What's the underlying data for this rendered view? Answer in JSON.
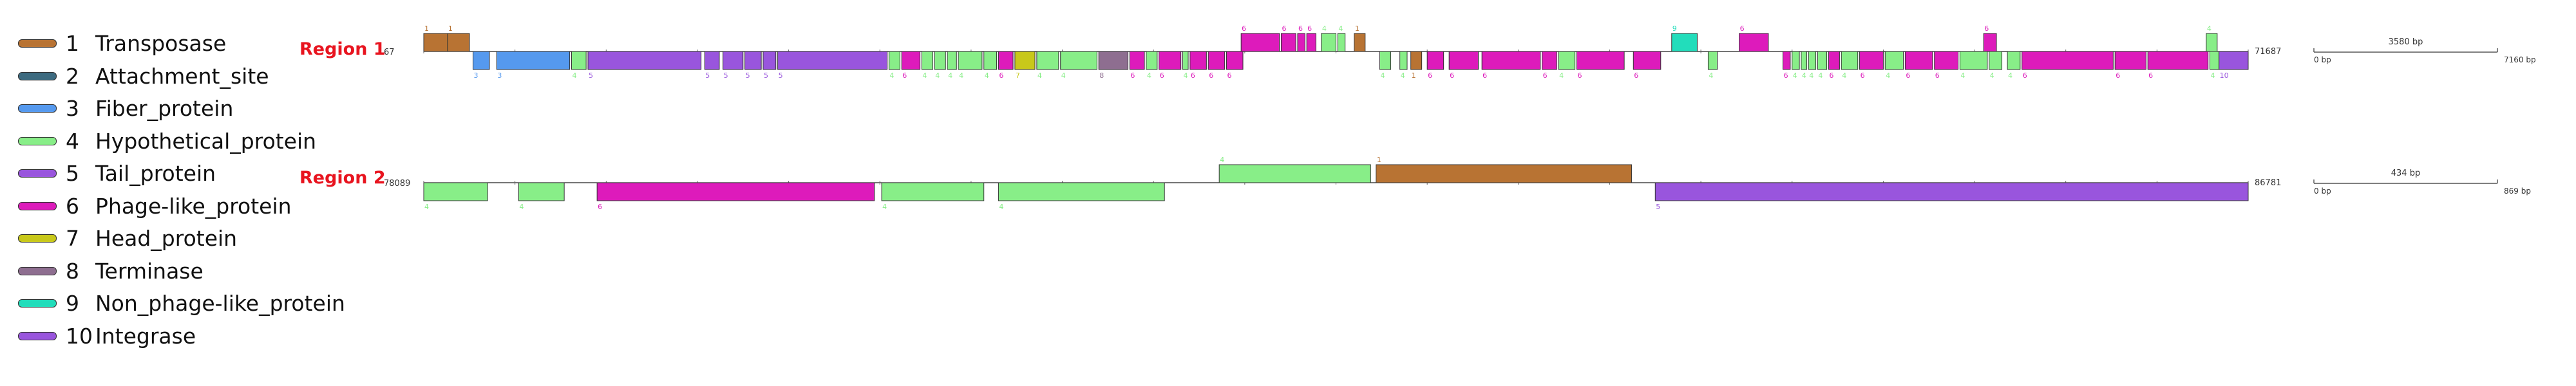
{
  "legend": [
    {
      "num": "1",
      "label": "Transposase",
      "color": "#b87333"
    },
    {
      "num": "2",
      "label": "Attachment_site",
      "color": "#3d6b80"
    },
    {
      "num": "3",
      "label": "Fiber_protein",
      "color": "#5599ee"
    },
    {
      "num": "4",
      "label": "Hypothetical_protein",
      "color": "#88ee88"
    },
    {
      "num": "5",
      "label": "Tail_protein",
      "color": "#9955dd"
    },
    {
      "num": "6",
      "label": "Phage-like_protein",
      "color": "#dd1bbb"
    },
    {
      "num": "7",
      "label": "Head_protein",
      "color": "#c8c81a"
    },
    {
      "num": "8",
      "label": "Terminase",
      "color": "#8e6e90"
    },
    {
      "num": "9",
      "label": "Non_phage-like_protein",
      "color": "#22ddbb"
    },
    {
      "num": "10",
      "label": "Integrase",
      "color": "#9955dd"
    }
  ],
  "regions": [
    {
      "title": "Region 1",
      "start": "67",
      "end": "71687",
      "scale": {
        "label": "3580 bp",
        "left": "0 bp",
        "right": "7160 bp"
      },
      "genes": [
        {
          "s": 0.0,
          "e": 0.025,
          "strand": 1,
          "type": 1,
          "label": "1"
        },
        {
          "s": 0.013,
          "e": 0.025,
          "strand": 1,
          "type": 1,
          "label": "1"
        },
        {
          "s": 0.027,
          "e": 0.036,
          "strand": -1,
          "type": 3,
          "label": "3"
        },
        {
          "s": 0.04,
          "e": 0.08,
          "strand": -1,
          "type": 3,
          "label": "3"
        },
        {
          "s": 0.081,
          "e": 0.089,
          "strand": -1,
          "type": 4,
          "label": "4"
        },
        {
          "s": 0.09,
          "e": 0.152,
          "strand": -1,
          "type": 5,
          "label": "5"
        },
        {
          "s": 0.154,
          "e": 0.162,
          "strand": -1,
          "type": 5,
          "label": "5"
        },
        {
          "s": 0.164,
          "e": 0.175,
          "strand": -1,
          "type": 5,
          "label": "5"
        },
        {
          "s": 0.176,
          "e": 0.185,
          "strand": -1,
          "type": 5,
          "label": "5"
        },
        {
          "s": 0.186,
          "e": 0.193,
          "strand": -1,
          "type": 5,
          "label": "5"
        },
        {
          "s": 0.194,
          "e": 0.254,
          "strand": -1,
          "type": 5,
          "label": "5"
        },
        {
          "s": 0.255,
          "e": 0.261,
          "strand": -1,
          "type": 4,
          "label": "4"
        },
        {
          "s": 0.262,
          "e": 0.272,
          "strand": -1,
          "type": 6,
          "label": "6"
        },
        {
          "s": 0.273,
          "e": 0.279,
          "strand": -1,
          "type": 4,
          "label": "4"
        },
        {
          "s": 0.28,
          "e": 0.286,
          "strand": -1,
          "type": 4,
          "label": "4"
        },
        {
          "s": 0.287,
          "e": 0.292,
          "strand": -1,
          "type": 4,
          "label": "4"
        },
        {
          "s": 0.293,
          "e": 0.306,
          "strand": -1,
          "type": 4,
          "label": "4"
        },
        {
          "s": 0.307,
          "e": 0.314,
          "strand": -1,
          "type": 4,
          "label": "4"
        },
        {
          "s": 0.315,
          "e": 0.323,
          "strand": -1,
          "type": 6,
          "label": "6"
        },
        {
          "s": 0.324,
          "e": 0.335,
          "strand": -1,
          "type": 7,
          "label": "7"
        },
        {
          "s": 0.336,
          "e": 0.348,
          "strand": -1,
          "type": 4,
          "label": "4"
        },
        {
          "s": 0.349,
          "e": 0.369,
          "strand": -1,
          "type": 4,
          "label": "4"
        },
        {
          "s": 0.37,
          "e": 0.386,
          "strand": -1,
          "type": 8,
          "label": "8"
        },
        {
          "s": 0.387,
          "e": 0.395,
          "strand": -1,
          "type": 6,
          "label": "6"
        },
        {
          "s": 0.396,
          "e": 0.402,
          "strand": -1,
          "type": 4,
          "label": "4"
        },
        {
          "s": 0.403,
          "e": 0.415,
          "strand": -1,
          "type": 6,
          "label": "6"
        },
        {
          "s": 0.416,
          "e": 0.419,
          "strand": -1,
          "type": 4,
          "label": "4"
        },
        {
          "s": 0.42,
          "e": 0.429,
          "strand": -1,
          "type": 6,
          "label": "6"
        },
        {
          "s": 0.43,
          "e": 0.439,
          "strand": -1,
          "type": 6,
          "label": "6"
        },
        {
          "s": 0.44,
          "e": 0.449,
          "strand": -1,
          "type": 6,
          "label": "6"
        },
        {
          "s": 0.448,
          "e": 0.469,
          "strand": 1,
          "type": 6,
          "label": "6"
        },
        {
          "s": 0.47,
          "e": 0.478,
          "strand": 1,
          "type": 6,
          "label": "6"
        },
        {
          "s": 0.479,
          "e": 0.483,
          "strand": 1,
          "type": 6,
          "label": "6"
        },
        {
          "s": 0.484,
          "e": 0.489,
          "strand": 1,
          "type": 6,
          "label": "6"
        },
        {
          "s": 0.492,
          "e": 0.5,
          "strand": 1,
          "type": 4,
          "label": "4"
        },
        {
          "s": 0.501,
          "e": 0.505,
          "strand": 1,
          "type": 4,
          "label": "4"
        },
        {
          "s": 0.51,
          "e": 0.516,
          "strand": 1,
          "type": 1,
          "label": "1"
        },
        {
          "s": 0.524,
          "e": 0.53,
          "strand": -1,
          "type": 4,
          "label": "4"
        },
        {
          "s": 0.535,
          "e": 0.539,
          "strand": -1,
          "type": 4,
          "label": "4"
        },
        {
          "s": 0.541,
          "e": 0.547,
          "strand": -1,
          "type": 1,
          "label": "1"
        },
        {
          "s": 0.55,
          "e": 0.559,
          "strand": -1,
          "type": 6,
          "label": "6"
        },
        {
          "s": 0.562,
          "e": 0.578,
          "strand": -1,
          "type": 6,
          "label": "6"
        },
        {
          "s": 0.58,
          "e": 0.612,
          "strand": -1,
          "type": 6,
          "label": "6"
        },
        {
          "s": 0.613,
          "e": 0.621,
          "strand": -1,
          "type": 6,
          "label": "6"
        },
        {
          "s": 0.622,
          "e": 0.631,
          "strand": -1,
          "type": 4,
          "label": "4"
        },
        {
          "s": 0.632,
          "e": 0.658,
          "strand": -1,
          "type": 6,
          "label": "6"
        },
        {
          "s": 0.663,
          "e": 0.678,
          "strand": -1,
          "type": 6,
          "label": "6"
        },
        {
          "s": 0.684,
          "e": 0.698,
          "strand": 1,
          "type": 9,
          "label": "9"
        },
        {
          "s": 0.704,
          "e": 0.709,
          "strand": -1,
          "type": 4,
          "label": "4"
        },
        {
          "s": 0.721,
          "e": 0.737,
          "strand": 1,
          "type": 6,
          "label": "6"
        },
        {
          "s": 0.745,
          "e": 0.749,
          "strand": -1,
          "type": 6,
          "label": "6"
        },
        {
          "s": 0.75,
          "e": 0.754,
          "strand": -1,
          "type": 4,
          "label": "4"
        },
        {
          "s": 0.755,
          "e": 0.758,
          "strand": -1,
          "type": 4,
          "label": "4"
        },
        {
          "s": 0.759,
          "e": 0.763,
          "strand": -1,
          "type": 4,
          "label": "4"
        },
        {
          "s": 0.764,
          "e": 0.769,
          "strand": -1,
          "type": 4,
          "label": "4"
        },
        {
          "s": 0.77,
          "e": 0.776,
          "strand": -1,
          "type": 6,
          "label": "6"
        },
        {
          "s": 0.777,
          "e": 0.786,
          "strand": -1,
          "type": 4,
          "label": "4"
        },
        {
          "s": 0.787,
          "e": 0.8,
          "strand": -1,
          "type": 6,
          "label": "6"
        },
        {
          "s": 0.801,
          "e": 0.811,
          "strand": -1,
          "type": 4,
          "label": "4"
        },
        {
          "s": 0.812,
          "e": 0.827,
          "strand": -1,
          "type": 6,
          "label": "6"
        },
        {
          "s": 0.828,
          "e": 0.841,
          "strand": -1,
          "type": 6,
          "label": "6"
        },
        {
          "s": 0.842,
          "e": 0.857,
          "strand": -1,
          "type": 4,
          "label": "4"
        },
        {
          "s": 0.858,
          "e": 0.865,
          "strand": -1,
          "type": 4,
          "label": "4"
        },
        {
          "s": 0.855,
          "e": 0.862,
          "strand": 1,
          "type": 6,
          "label": "6"
        },
        {
          "s": 0.868,
          "e": 0.875,
          "strand": -1,
          "type": 4,
          "label": "4"
        },
        {
          "s": 0.876,
          "e": 0.926,
          "strand": -1,
          "type": 6,
          "label": "6"
        },
        {
          "s": 0.927,
          "e": 0.944,
          "strand": -1,
          "type": 6,
          "label": "6"
        },
        {
          "s": 0.945,
          "e": 0.978,
          "strand": -1,
          "type": 6,
          "label": "6"
        },
        {
          "s": 0.979,
          "e": 0.984,
          "strand": -1,
          "type": 4,
          "label": "4"
        },
        {
          "s": 0.977,
          "e": 0.983,
          "strand": 1,
          "type": 4,
          "label": "4"
        },
        {
          "s": 0.984,
          "e": 1.0,
          "strand": -1,
          "type": 10,
          "label": "10"
        }
      ]
    },
    {
      "title": "Region 2",
      "start": "78089",
      "end": "86781",
      "scale": {
        "label": "434 bp",
        "left": "0 bp",
        "right": "869 bp"
      },
      "genes": [
        {
          "s": 0.0,
          "e": 0.035,
          "strand": -1,
          "type": 4,
          "label": "4"
        },
        {
          "s": 0.052,
          "e": 0.077,
          "strand": -1,
          "type": 4,
          "label": "4"
        },
        {
          "s": 0.095,
          "e": 0.247,
          "strand": -1,
          "type": 6,
          "label": "6"
        },
        {
          "s": 0.251,
          "e": 0.307,
          "strand": -1,
          "type": 4,
          "label": "4"
        },
        {
          "s": 0.315,
          "e": 0.406,
          "strand": -1,
          "type": 4,
          "label": "4"
        },
        {
          "s": 0.436,
          "e": 0.519,
          "strand": 1,
          "type": 4,
          "label": "4"
        },
        {
          "s": 0.522,
          "e": 0.662,
          "strand": 1,
          "type": 1,
          "label": "1"
        },
        {
          "s": 0.675,
          "e": 1.0,
          "strand": -1,
          "type": 5,
          "label": "5"
        }
      ]
    }
  ]
}
